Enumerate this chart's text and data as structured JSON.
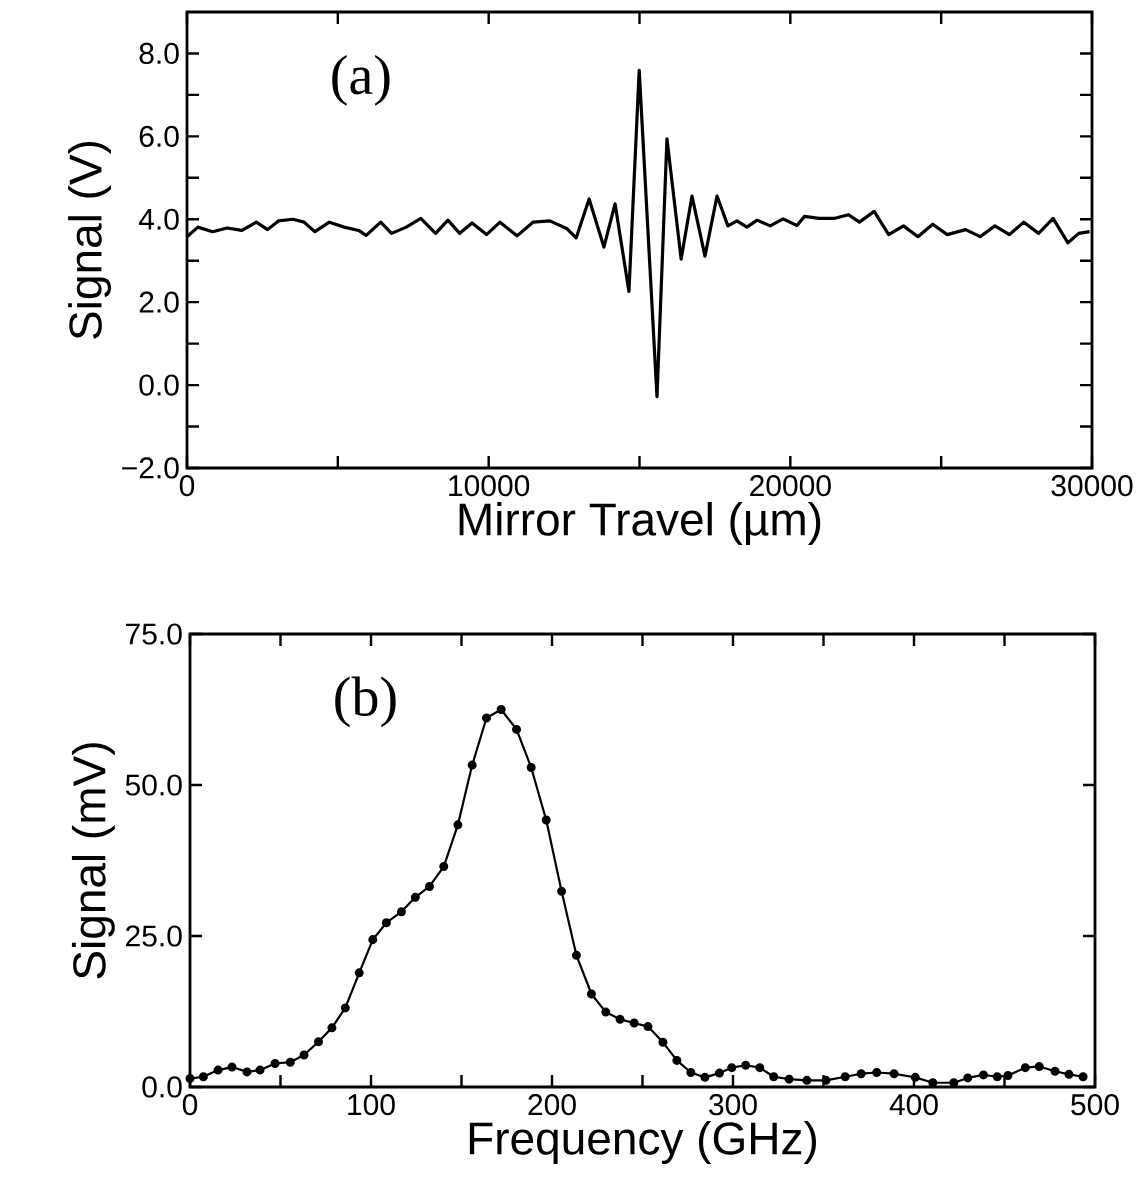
{
  "chart_data": [
    {
      "type": "line",
      "title": "(a)",
      "xlabel": "Mirror Travel (µm)",
      "ylabel": "Signal (V)",
      "xlim": [
        0,
        30000
      ],
      "ylim": [
        -2,
        9
      ],
      "xticks": [
        0,
        {
          "value": 5000,
          "label": null
        },
        10000,
        {
          "value": 15000,
          "label": null
        },
        20000,
        {
          "value": 25000,
          "label": null
        },
        30000
      ],
      "yticks": [
        {
          "value": -2,
          "label": "−2.0"
        },
        {
          "value": -1,
          "label": null
        },
        {
          "value": 0,
          "label": "0.0"
        },
        {
          "value": 1,
          "label": null
        },
        {
          "value": 2,
          "label": "2.0"
        },
        {
          "value": 3,
          "label": null
        },
        {
          "value": 4,
          "label": "4.0"
        },
        {
          "value": 5,
          "label": null
        },
        {
          "value": 6,
          "label": "6.0"
        },
        {
          "value": 7,
          "label": null
        },
        {
          "value": 8,
          "label": "8.0"
        }
      ],
      "grid": false,
      "marker": "none",
      "line_style": "solid",
      "series": [
        {
          "color": "#000000",
          "x": [
            0,
            363,
            850,
            1330,
            1820,
            2300,
            2670,
            3030,
            3510,
            3880,
            4240,
            4720,
            5210,
            5690,
            5940,
            6420,
            6780,
            7270,
            7750,
            8240,
            8650,
            9040,
            9450,
            9930,
            10376,
            10940,
            11470,
            12030,
            12600,
            12900,
            13330,
            13820,
            14190,
            14650,
            14990,
            15580,
            15910,
            16380,
            16740,
            17170,
            17570,
            17930,
            18230,
            18560,
            18900,
            19330,
            19760,
            20220,
            20470,
            20960,
            21440,
            21930,
            22290,
            22780,
            23260,
            23750,
            24230,
            24720,
            25200,
            25810,
            26290,
            26780,
            27260,
            27740,
            28230,
            28710,
            29200,
            29560,
            29920
          ],
          "values": [
            3.58,
            3.81,
            3.7,
            3.79,
            3.73,
            3.93,
            3.75,
            3.96,
            4.0,
            3.93,
            3.7,
            3.93,
            3.81,
            3.73,
            3.61,
            3.93,
            3.66,
            3.81,
            4.02,
            3.66,
            3.98,
            3.66,
            3.91,
            3.63,
            3.93,
            3.6,
            3.93,
            3.96,
            3.77,
            3.55,
            4.49,
            3.33,
            4.37,
            2.26,
            7.59,
            -0.28,
            5.94,
            3.04,
            4.56,
            3.11,
            4.56,
            3.84,
            3.96,
            3.81,
            3.98,
            3.84,
            4.01,
            3.85,
            4.07,
            4.02,
            4.02,
            4.11,
            3.93,
            4.19,
            3.63,
            3.84,
            3.58,
            3.88,
            3.63,
            3.75,
            3.58,
            3.84,
            3.63,
            3.93,
            3.66,
            4.02,
            3.43,
            3.66,
            3.7
          ]
        }
      ]
    },
    {
      "type": "line",
      "title": "(b)",
      "xlabel": "Frequency (GHz)",
      "ylabel": "Signal (mV)",
      "xlim": [
        0,
        500
      ],
      "ylim": [
        0,
        75
      ],
      "xticks": [
        0,
        {
          "value": 50,
          "label": null
        },
        100,
        {
          "value": 150,
          "label": null
        },
        200,
        {
          "value": 250,
          "label": null
        },
        300,
        {
          "value": 350,
          "label": null
        },
        400,
        {
          "value": 450,
          "label": null
        },
        500
      ],
      "yticks": [
        {
          "value": 0,
          "label": "0.0"
        },
        {
          "value": 25,
          "label": "25.0"
        },
        {
          "value": 50,
          "label": "50.0"
        },
        {
          "value": 75,
          "label": "75.0"
        }
      ],
      "grid": false,
      "marker": "circle",
      "line_style": "solid",
      "series": [
        {
          "color": "#000000",
          "x": [
            0,
            7.4,
            15.5,
            23.2,
            31.5,
            38.7,
            47,
            55.4,
            63,
            71,
            78.4,
            85.8,
            93.5,
            101,
            108.5,
            116.8,
            124.5,
            132.3,
            140.2,
            148,
            155.9,
            163.8,
            171.9,
            180.4,
            188.5,
            196.8,
            205.3,
            213.5,
            221.8,
            229.7,
            237.6,
            245.4,
            253,
            261.3,
            269,
            276.7,
            284.5,
            292.5,
            299.3,
            307,
            314.8,
            322.5,
            331,
            340.8,
            351.4,
            362,
            370.8,
            379.4,
            389,
            400.7,
            410.4,
            422,
            429.7,
            438.4,
            446,
            451.9,
            461.5,
            469.2,
            477.9,
            485.6,
            493.4
          ],
          "values": [
            1.4,
            1.7,
            2.8,
            3.3,
            2.5,
            2.8,
            3.9,
            4.1,
            5.3,
            7.5,
            9.8,
            13.1,
            18.9,
            24.4,
            27.2,
            29.0,
            31.4,
            33.2,
            36.5,
            43.4,
            53.3,
            61.1,
            62.5,
            59.2,
            52.9,
            44.2,
            32.4,
            21.8,
            15.4,
            12.4,
            11.2,
            10.6,
            10.0,
            7.4,
            4.4,
            2.4,
            1.6,
            2.3,
            3.2,
            3.6,
            3.2,
            1.7,
            1.3,
            1.1,
            1.1,
            1.7,
            2.2,
            2.4,
            2.2,
            1.6,
            0.7,
            0.7,
            1.5,
            2.0,
            1.7,
            1.9,
            3.2,
            3.4,
            2.6,
            2.1,
            1.7
          ]
        }
      ]
    }
  ]
}
